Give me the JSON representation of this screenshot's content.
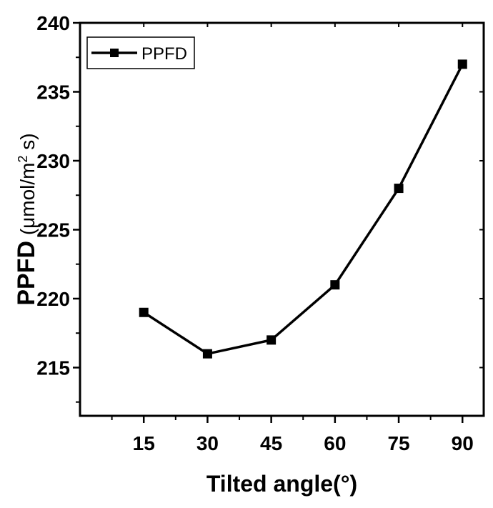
{
  "chart_data": {
    "type": "line",
    "xlabel": "Tilted angle(°)",
    "ylabel": {
      "main": "PPFD",
      "unit_open": " (μmol/m",
      "unit_sup": "2",
      "unit_close": " s)"
    },
    "x": [
      15,
      30,
      45,
      60,
      75,
      90
    ],
    "series": [
      {
        "name": "PPFD",
        "values": [
          219,
          216,
          217,
          221,
          228,
          237
        ],
        "color": "#000000",
        "marker": "square"
      }
    ],
    "xlim": [
      0,
      95
    ],
    "ylim": [
      211.5,
      240
    ],
    "xticks": [
      15,
      30,
      45,
      60,
      75,
      90
    ],
    "yticks": [
      215,
      220,
      225,
      230,
      235,
      240
    ],
    "legend": "top-left",
    "grid": false
  }
}
